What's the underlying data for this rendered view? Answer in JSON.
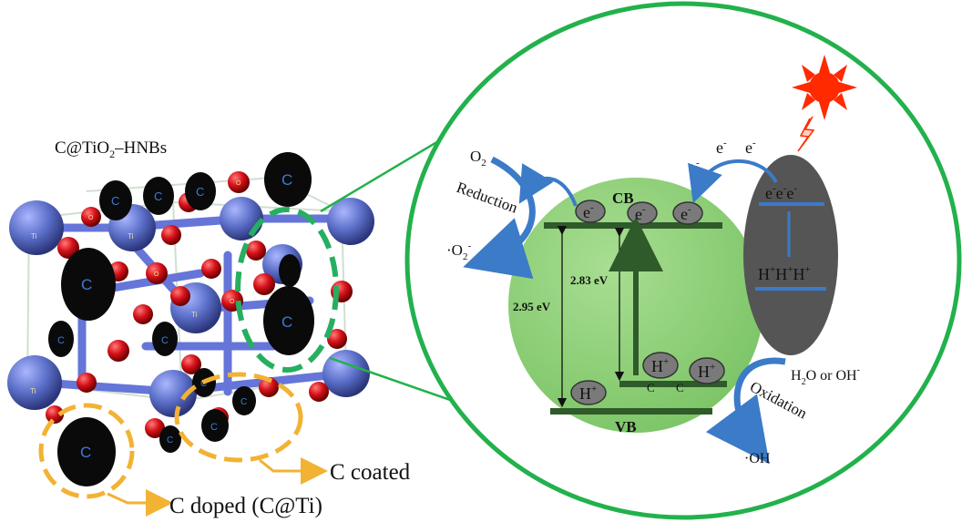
{
  "left": {
    "title": "C@TiO",
    "title_sub": "2",
    "title_rest": "–HNBs",
    "carbon_label": "C",
    "ti_label": "Ti",
    "o_label": "O",
    "label_coated": "C coated",
    "label_doped": "C doped (C@Ti)"
  },
  "right": {
    "cb": "CB",
    "vb": "VB",
    "gap_outer": "2.95 eV",
    "gap_inner": "2.83 eV",
    "electron": "e",
    "electron_sup": "-",
    "hole": "H",
    "hole_sup": "+",
    "carbon_small": "C",
    "o2": "O",
    "o2_sub": "2",
    "reduction": "Reduction",
    "superoxide": "·O",
    "superoxide_sub": "2",
    "superoxide_sup": "-",
    "oxidation": "Oxidation",
    "h2o_prefix": "H",
    "h2o_sub": "2",
    "h2o_rest": "O or OH",
    "h2o_sup": "-",
    "hydroxyl": "·OH",
    "sens_electrons": "e",
    "sens_holes": "H"
  },
  "colors": {
    "ti": "#5b6fc8",
    "oxygen": "#d6121a",
    "carbon": "#0a0a0a",
    "zoom_circle": "#22b14c",
    "semiconductor": "#8fd17a",
    "band": "#2f5a2a",
    "sensitizer": "#555555",
    "arrow": "#3b7bc8",
    "dash_yellow": "#f2b233",
    "dash_green": "#27ae60",
    "sun": "#ff2a00"
  }
}
